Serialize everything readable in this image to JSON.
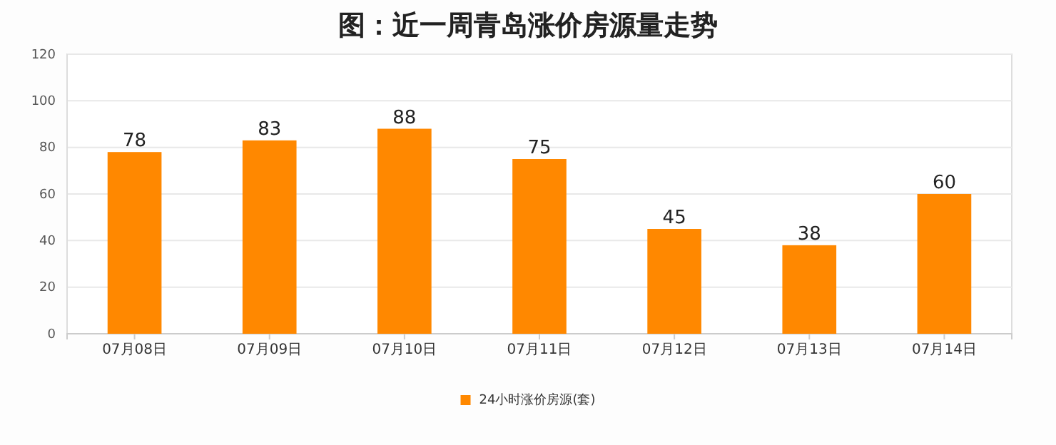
{
  "chart_data": {
    "type": "bar",
    "title": "图：近一周青岛涨价房源量走势",
    "categories": [
      "07月08日",
      "07月09日",
      "07月10日",
      "07月11日",
      "07月12日",
      "07月13日",
      "07月14日"
    ],
    "series": [
      {
        "name": "24小时涨价房源(套)",
        "color": "#ff8800",
        "values": [
          78,
          83,
          88,
          75,
          45,
          38,
          60
        ]
      }
    ],
    "ylim": [
      0,
      120
    ],
    "yticks": [
      0,
      20,
      40,
      60,
      80,
      100,
      120
    ],
    "grid": "y",
    "legend": "bottom",
    "data_labels": true
  }
}
